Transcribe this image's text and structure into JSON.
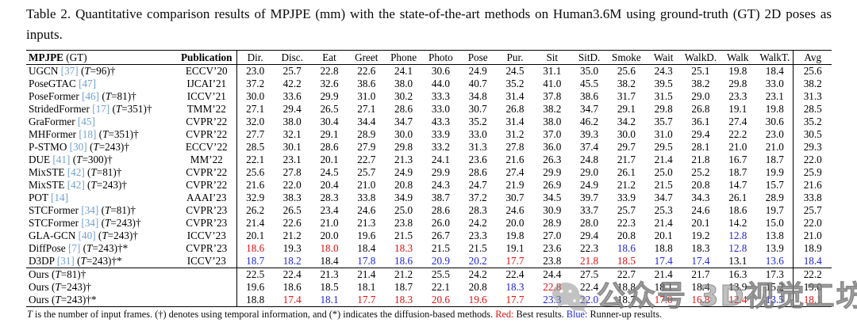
{
  "caption": {
    "label": "Table 2.",
    "text": "Quantitative comparison results of MPJPE (mm) with the state-of-the-art methods on Human3.6M using ground-truth (GT) 2D poses as inputs."
  },
  "colors": {
    "best": "#e01010",
    "runner_up": "#2026d6",
    "citation": "#72a0cf"
  },
  "table": {
    "method_header_bold": "MPJPE",
    "method_header_rest": " (GT)",
    "publication_header": "Publication",
    "action_headers": [
      "Dir.",
      "Disc.",
      "Eat",
      "Greet",
      "Phone",
      "Photo",
      "Pose",
      "Pur.",
      "Sit",
      "SitD.",
      "Smoke",
      "Wait",
      "WalkD.",
      "Walk",
      "WalkT.",
      "Avg"
    ],
    "rows": [
      {
        "m": "UGCN",
        "cite": "[37]",
        "tail": "(T=96)†",
        "pub": "ECCV’20",
        "vals": [
          "23.0",
          "25.7",
          "22.8",
          "22.6",
          "24.1",
          "30.6",
          "24.9",
          "24.5",
          "31.1",
          "35.0",
          "25.6",
          "24.3",
          "25.1",
          "19.8",
          "18.4",
          "25.6"
        ]
      },
      {
        "m": "PoseGTAC",
        "cite": "[47]",
        "tail": "",
        "pub": "IJCAI’21",
        "vals": [
          "37.2",
          "42.2",
          "32.6",
          "38.6",
          "38.0",
          "44.0",
          "40.7",
          "35.2",
          "41.0",
          "45.5",
          "38.2",
          "39.5",
          "38.2",
          "29.8",
          "33.0",
          "38.2"
        ]
      },
      {
        "m": "PoseFormer",
        "cite": "[46]",
        "tail": "(T=81)†",
        "pub": "ICCV’21",
        "vals": [
          "30.0",
          "33.6",
          "29.9",
          "31.0",
          "30.2",
          "33.3",
          "34.8",
          "31.4",
          "37.8",
          "38.6",
          "31.7",
          "31.5",
          "29.0",
          "23.3",
          "23.1",
          "31.3"
        ]
      },
      {
        "m": "StridedFormer",
        "cite": "[17]",
        "tail": "(T=351)†",
        "pub": "TMM’22",
        "vals": [
          "27.1",
          "29.4",
          "26.5",
          "27.1",
          "28.6",
          "33.0",
          "30.7",
          "26.8",
          "38.2",
          "34.7",
          "29.1",
          "29.8",
          "26.8",
          "19.1",
          "19.8",
          "28.5"
        ]
      },
      {
        "m": "GraFormer",
        "cite": "[45]",
        "tail": "",
        "pub": "CVPR’22",
        "vals": [
          "32.0",
          "38.0",
          "30.4",
          "34.4",
          "34.7",
          "43.3",
          "35.2",
          "31.4",
          "38.0",
          "46.2",
          "34.2",
          "35.7",
          "36.1",
          "27.4",
          "30.6",
          "35.2"
        ]
      },
      {
        "m": "MHFormer",
        "cite": "[18]",
        "tail": "(T=351)†",
        "pub": "CVPR’22",
        "vals": [
          "27.7",
          "32.1",
          "29.1",
          "28.9",
          "30.0",
          "33.9",
          "33.0",
          "31.2",
          "37.0",
          "39.3",
          "30.0",
          "31.0",
          "29.4",
          "22.2",
          "23.0",
          "30.5"
        ]
      },
      {
        "m": "P-STMO",
        "cite": "[30]",
        "tail": "(T=243)†",
        "pub": "ECCV’22",
        "vals": [
          "28.5",
          "30.1",
          "28.6",
          "27.9",
          "29.8",
          "33.2",
          "31.3",
          "27.8",
          "36.0",
          "37.4",
          "29.7",
          "29.5",
          "28.1",
          "21.0",
          "21.0",
          "29.3"
        ]
      },
      {
        "m": "DUE",
        "cite": "[41]",
        "tail": "(T=300)†",
        "pub": "MM’22",
        "vals": [
          "22.1",
          "23.1",
          "20.1",
          "22.7",
          "21.3",
          "24.1",
          "23.6",
          "21.6",
          "26.3",
          "24.8",
          "21.7",
          "21.4",
          "21.8",
          "16.7",
          "18.7",
          "22.0"
        ]
      },
      {
        "m": "MixSTE",
        "cite": "[42]",
        "tail": "(T=81)†",
        "pub": "CVPR’22",
        "vals": [
          "25.6",
          "27.8",
          "24.5",
          "25.7",
          "24.9",
          "29.9",
          "28.6",
          "27.4",
          "29.9",
          "29.0",
          "26.1",
          "25.0",
          "25.2",
          "18.7",
          "19.9",
          "25.9"
        ]
      },
      {
        "m": "MixSTE",
        "cite": "[42]",
        "tail": "(T=243)†",
        "pub": "CVPR’22",
        "vals": [
          "21.6",
          "22.0",
          "20.4",
          "21.0",
          "20.8",
          "24.3",
          "24.7",
          "21.9",
          "26.9",
          "24.9",
          "21.2",
          "21.5",
          "20.8",
          "14.7",
          "15.7",
          "21.6"
        ]
      },
      {
        "m": "POT",
        "cite": "[14]",
        "tail": "",
        "pub": "AAAI’23",
        "vals": [
          "32.9",
          "38.3",
          "28.3",
          "33.8",
          "34.9",
          "38.7",
          "37.2",
          "30.7",
          "34.5",
          "39.7",
          "33.9",
          "34.7",
          "34.3",
          "26.1",
          "28.9",
          "33.8"
        ]
      },
      {
        "m": "STCFormer",
        "cite": "[34]",
        "tail": "(T=81)†",
        "pub": "CVPR’23",
        "vals": [
          "26.2",
          "26.5",
          "23.4",
          "24.6",
          "25.0",
          "28.6",
          "28.3",
          "24.6",
          "30.9",
          "33.7",
          "25.7",
          "25.3",
          "24.6",
          "18.6",
          "19.7",
          "25.7"
        ]
      },
      {
        "m": "STCFormer",
        "cite": "[34]",
        "tail": "(T=243)†",
        "pub": "CVPR’23",
        "vals": [
          "21.4",
          "22.6",
          "21.0",
          "21.3",
          "23.8",
          "26.0",
          "24.2",
          "20.0",
          "28.9",
          "28.0",
          "22.3",
          "21.4",
          "20.1",
          "14.2",
          "15.0",
          "22.0"
        ]
      },
      {
        "m": "GLA-GCN",
        "cite": "[40]",
        "tail": "(T=243)†",
        "pub": "ICCV’23",
        "vals": [
          "20.1",
          "21.2",
          "20.0",
          "19.6",
          "21.5",
          "26.7",
          "23.3",
          "19.8",
          "27.0",
          "29.4",
          "20.8",
          "20.1",
          "19.2",
          "b:12.8",
          "13.8",
          "21.0"
        ]
      },
      {
        "m": "DiffPose",
        "cite": "[7]",
        "tail": "(T=243)†*",
        "pub": "CVPR’23",
        "vals": [
          "r:18.6",
          "19.3",
          "r:18.0",
          "18.4",
          "r:18.3",
          "21.5",
          "21.5",
          "19.1",
          "23.6",
          "22.3",
          "b:18.6",
          "18.8",
          "18.3",
          "b:12.8",
          "13.9",
          "18.9"
        ]
      },
      {
        "m": "D3DP",
        "cite": "[31]",
        "tail": "(T=243)†*",
        "pub": "ICCV’23",
        "vals": [
          "b:18.7",
          "b:18.2",
          "18.4",
          "b:17.8",
          "b:18.6",
          "b:20.9",
          "b:20.2",
          "r:17.7",
          "23.8",
          "r:21.8",
          "r:18.5",
          "b:17.4",
          "b:17.4",
          "13.1",
          "b:13.6",
          "b:18.4"
        ]
      }
    ],
    "ours_rows": [
      {
        "m": "Ours",
        "cite": "",
        "tail": "(T=81)†",
        "pub": "",
        "vals": [
          "22.5",
          "22.4",
          "21.3",
          "21.4",
          "21.2",
          "25.5",
          "24.2",
          "22.4",
          "24.4",
          "27.5",
          "22.7",
          "21.4",
          "21.7",
          "16.3",
          "17.3",
          "22.2"
        ]
      },
      {
        "m": "Ours",
        "cite": "",
        "tail": "(T=243)†",
        "pub": "",
        "vals": [
          "19.6",
          "18.6",
          "18.5",
          "18.1",
          "18.7",
          "22.1",
          "20.8",
          "b:18.3",
          "r:22.8",
          "22.4",
          "18.8",
          "18.1",
          "18.4",
          "13.9",
          "15.2",
          "19.0"
        ]
      },
      {
        "m": "Ours",
        "cite": "",
        "tail": "(T=243)†*",
        "pub": "",
        "vals": [
          "18.8",
          "r:17.4",
          "b:18.1",
          "r:17.7",
          "r:18.3",
          "r:20.6",
          "r:19.6",
          "r:17.7",
          "b:23.3",
          "b:22.0",
          "18.7",
          "r:17.0",
          "r:16.8",
          "r:12.4",
          "b:13.5",
          "r:18.1"
        ]
      }
    ]
  },
  "footnote": {
    "t": "T",
    "pre": " is the number of input frames. (†) denotes using temporal information, and (*) indicates the diffusion-based methods. ",
    "red_label": "Red:",
    "red_text": " Best results. ",
    "blue_label": "Blue:",
    "blue_text": " Runner-up results."
  },
  "watermark": {
    "text": "公众号  3D视觉工坊"
  }
}
